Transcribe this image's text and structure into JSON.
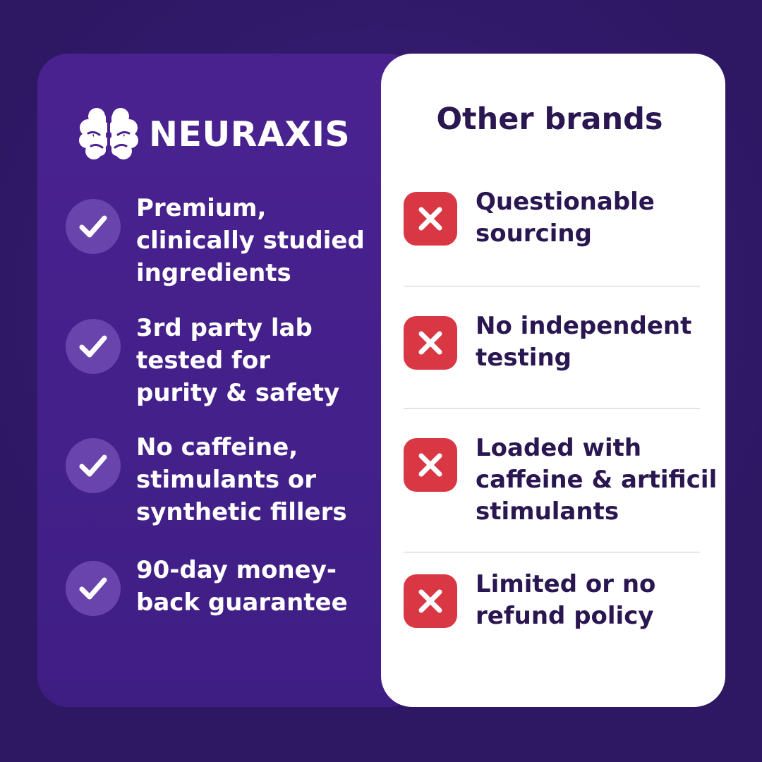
{
  "colors": {
    "background": "#2e1864",
    "left_panel": "#4a2290",
    "check_circle": "#6a44ad",
    "x_box": "#d93744",
    "dark_text": "#2a1650"
  },
  "brand": {
    "logo_icon": "brain-icon",
    "name": "NEURAXIS"
  },
  "pros": [
    {
      "icon": "check-icon",
      "lines": [
        "Premium,",
        "clinically studied",
        "ingredients"
      ]
    },
    {
      "icon": "check-icon",
      "lines": [
        "3rd party lab",
        "tested for",
        "purity & safety"
      ]
    },
    {
      "icon": "check-icon",
      "lines": [
        "No caffeine,",
        "stimulants or",
        "synthetic fillers"
      ]
    },
    {
      "icon": "check-icon",
      "lines": [
        "90-day money-",
        "back guarantee"
      ]
    }
  ],
  "other": {
    "title": "Other brands",
    "items": [
      {
        "icon": "x-icon",
        "lines": [
          "Questionable",
          "sourcing"
        ]
      },
      {
        "icon": "x-icon",
        "lines": [
          "No independent",
          "testing"
        ]
      },
      {
        "icon": "x-icon",
        "lines": [
          "Loaded with",
          "caffeine & artificil",
          "stimulants"
        ]
      },
      {
        "icon": "x-icon",
        "lines": [
          "Limited or no",
          "refund policy"
        ]
      }
    ]
  }
}
